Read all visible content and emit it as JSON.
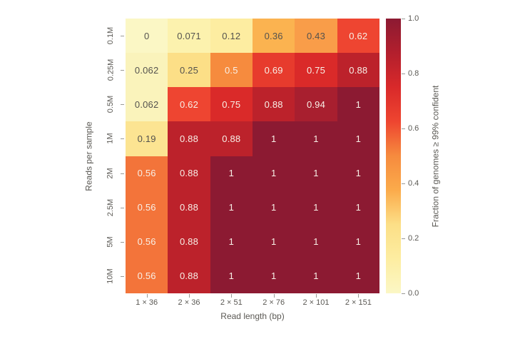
{
  "chart_data": {
    "type": "heatmap",
    "xlabel": "Read length (bp)",
    "ylabel": "Reads per sample",
    "x_categories": [
      "1 × 36",
      "2 × 36",
      "2 × 51",
      "2 × 76",
      "2 × 101",
      "2 × 151"
    ],
    "y_categories": [
      "0.1M",
      "0.25M",
      "0.5M",
      "1M",
      "2M",
      "2.5M",
      "5M",
      "10M"
    ],
    "values": [
      [
        0,
        0.071,
        0.12,
        0.36,
        0.43,
        0.62
      ],
      [
        0.062,
        0.25,
        0.5,
        0.69,
        0.75,
        0.88
      ],
      [
        0.062,
        0.62,
        0.75,
        0.88,
        0.94,
        1
      ],
      [
        0.19,
        0.88,
        0.88,
        1,
        1,
        1
      ],
      [
        0.56,
        0.88,
        1,
        1,
        1,
        1
      ],
      [
        0.56,
        0.88,
        1,
        1,
        1,
        1
      ],
      [
        0.56,
        0.88,
        1,
        1,
        1,
        1
      ],
      [
        0.56,
        0.88,
        1,
        1,
        1,
        1
      ]
    ],
    "cell_labels": [
      [
        "0",
        "0.071",
        "0.12",
        "0.36",
        "0.43",
        "0.62"
      ],
      [
        "0.062",
        "0.25",
        "0.5",
        "0.69",
        "0.75",
        "0.88"
      ],
      [
        "0.062",
        "0.62",
        "0.75",
        "0.88",
        "0.94",
        "1"
      ],
      [
        "0.19",
        "0.88",
        "0.88",
        "1",
        "1",
        "1"
      ],
      [
        "0.56",
        "0.88",
        "1",
        "1",
        "1",
        "1"
      ],
      [
        "0.56",
        "0.88",
        "1",
        "1",
        "1",
        "1"
      ],
      [
        "0.56",
        "0.88",
        "1",
        "1",
        "1",
        "1"
      ],
      [
        "0.56",
        "0.88",
        "1",
        "1",
        "1",
        "1"
      ]
    ],
    "value_range": [
      0,
      1
    ],
    "grid": false,
    "colorbar": {
      "label": "Fraction of genomes ≥ 99% confident",
      "ticks": [
        "1.0",
        "0.8",
        "0.6",
        "0.4",
        "0.2",
        "0.0"
      ],
      "tick_values": [
        1.0,
        0.8,
        0.6,
        0.4,
        0.2,
        0.0
      ],
      "position": "right"
    },
    "colormap": {
      "name": "YlOrRd",
      "stops": [
        {
          "t": 0.0,
          "color": "#fbf7c5"
        },
        {
          "t": 0.125,
          "color": "#fdeda1"
        },
        {
          "t": 0.25,
          "color": "#fcdf87"
        },
        {
          "t": 0.375,
          "color": "#fbab4b"
        },
        {
          "t": 0.5,
          "color": "#f68b3e"
        },
        {
          "t": 0.625,
          "color": "#ee4530"
        },
        {
          "t": 0.75,
          "color": "#d9292a"
        },
        {
          "t": 0.875,
          "color": "#b31f2d"
        },
        {
          "t": 1.0,
          "color": "#8c1a32"
        }
      ],
      "value_colors": {
        "0": "#fbf7c5",
        "0.062": "#faf3bb",
        "0.071": "#fcf2ae",
        "0.12": "#fdeda1",
        "0.19": "#fce492",
        "0.25": "#fcdf87",
        "0.36": "#fbb350",
        "0.43": "#f99d49",
        "0.5": "#f68b3e",
        "0.56": "#f3743a",
        "0.62": "#ee4531",
        "0.69": "#e73b2d",
        "0.75": "#da2a29",
        "0.88": "#bc222b",
        "0.94": "#a81f2f",
        "1": "#8c1a32"
      },
      "text_dark": "#54524e",
      "text_light": "#f8f0e7",
      "text_light_threshold": 0.5
    }
  }
}
